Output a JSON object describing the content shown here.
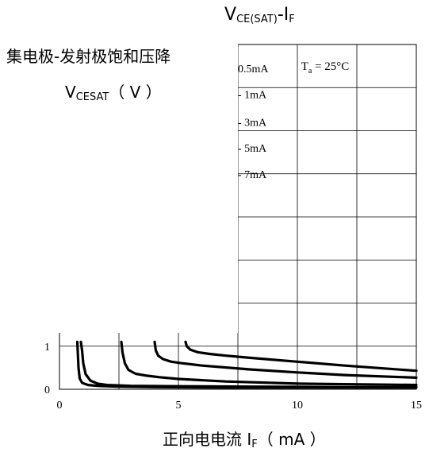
{
  "chart_data": {
    "type": "line",
    "title_main": "V",
    "title_sub": "CE(SAT)",
    "title_tail": "-I",
    "title_tail_sub": "F",
    "ylabel_line1": "集电极-发射极饱和压降",
    "ylabel_v": "V",
    "ylabel_sub": "CESAT",
    "ylabel_unit": "（ V ）",
    "xlabel_main": "正向电电流 I",
    "xlabel_sub": "F",
    "xlabel_unit": "（ mA ）",
    "annotation": "T",
    "annotation_sub": "a",
    "annotation_tail": " = 25°C",
    "xlim": [
      0,
      15
    ],
    "ylim": [
      0,
      8
    ],
    "x_ticks": [
      "0",
      "5",
      "10",
      "15"
    ],
    "y_ticks_visible": [
      "0",
      "1"
    ],
    "grid": true,
    "series_labels": [
      "0.5mA",
      "1mA",
      "3mA",
      "5mA",
      "7mA"
    ],
    "series": [
      {
        "x": [
          0.9,
          0.95,
          1.0,
          1.1,
          1.3,
          1.6,
          2,
          3,
          5,
          8,
          12,
          15
        ],
        "y": [
          1.1,
          0.9,
          0.6,
          0.35,
          0.2,
          0.13,
          0.1,
          0.08,
          0.07,
          0.06,
          0.05,
          0.05
        ]
      },
      {
        "x": [
          2.6,
          2.65,
          2.75,
          2.9,
          3.2,
          3.6,
          4.2,
          5,
          7,
          10,
          15
        ],
        "y": [
          1.1,
          0.85,
          0.6,
          0.45,
          0.36,
          0.32,
          0.28,
          0.24,
          0.18,
          0.13,
          0.1
        ]
      },
      {
        "x": [
          4.0,
          4.05,
          4.15,
          4.35,
          4.7,
          5.2,
          6,
          8,
          10,
          12,
          15
        ],
        "y": [
          1.1,
          0.9,
          0.78,
          0.7,
          0.64,
          0.6,
          0.55,
          0.46,
          0.39,
          0.33,
          0.27
        ]
      },
      {
        "x": [
          5.3,
          5.35,
          5.5,
          5.8,
          6.3,
          7,
          8,
          10,
          12,
          15
        ],
        "y": [
          1.1,
          1.0,
          0.92,
          0.86,
          0.82,
          0.78,
          0.73,
          0.64,
          0.55,
          0.43
        ]
      },
      {
        "x": [
          0.75,
          0.8,
          0.85,
          0.95,
          1.2,
          1.6,
          2.5,
          4,
          7,
          10,
          15
        ],
        "y": [
          1.1,
          0.5,
          0.25,
          0.15,
          0.1,
          0.08,
          0.06,
          0.05,
          0.04,
          0.04,
          0.04
        ]
      }
    ]
  }
}
